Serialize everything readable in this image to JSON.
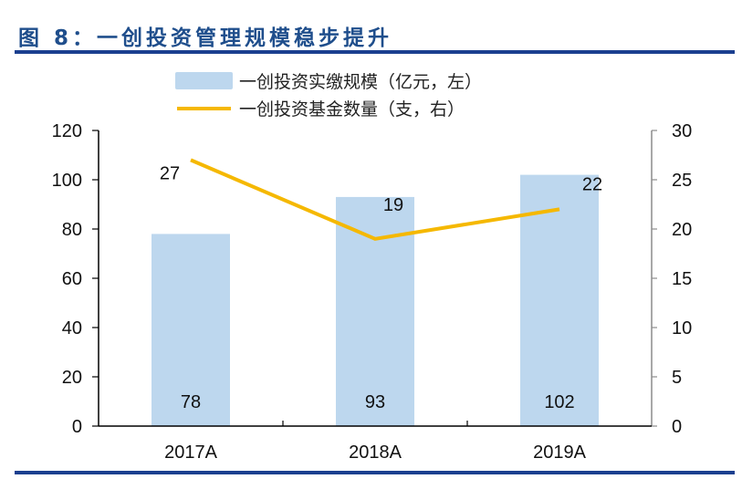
{
  "figure_title": "图 8：一创投资管理规模稳步提升",
  "colors": {
    "title": "#1f4e8c",
    "rule": "#1b3f8f",
    "bar": "#bdd7ee",
    "line": "#f5b800",
    "left_axis": "#000000",
    "right_axis": "#8c8c8c"
  },
  "chart_data": {
    "type": "bar+line",
    "title": "一创投资管理规模稳步提升",
    "categories": [
      "2017A",
      "2018A",
      "2019A"
    ],
    "series": [
      {
        "name": "一创投资实缴规模（亿元，左）",
        "type": "bar",
        "axis": "left",
        "values": [
          78,
          93,
          102
        ],
        "labels": [
          "78",
          "93",
          "102"
        ]
      },
      {
        "name": "一创投资基金数量（支，右）",
        "type": "line",
        "axis": "right",
        "values": [
          27,
          19,
          22
        ],
        "labels": [
          "27",
          "19",
          "22"
        ]
      }
    ],
    "left_axis": {
      "ylim": [
        0,
        120
      ],
      "ticks": [
        "0",
        "20",
        "40",
        "60",
        "80",
        "100",
        "120"
      ],
      "tick_values": [
        0,
        20,
        40,
        60,
        80,
        100,
        120
      ]
    },
    "right_axis": {
      "ylim": [
        0,
        30
      ],
      "ticks": [
        "0",
        "5",
        "10",
        "15",
        "20",
        "25",
        "30"
      ],
      "tick_values": [
        0,
        5,
        10,
        15,
        20,
        25,
        30
      ]
    },
    "grid": false,
    "legend_position": "top-center"
  }
}
